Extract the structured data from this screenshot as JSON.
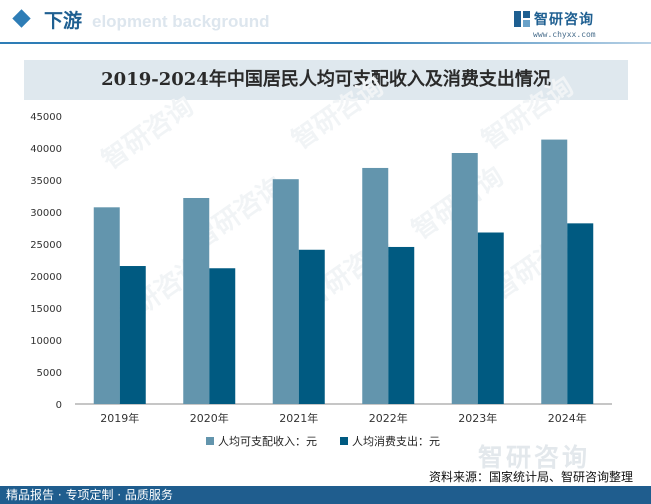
{
  "header": {
    "section_title": "下游",
    "watermark_text": "elopment background",
    "brand_name": "智研咨询",
    "brand_url": "www.chyxx.com"
  },
  "footer": {
    "services": "精品报告 · 专项定制 · 品质服务",
    "source": "资料来源：国家统计局、智研咨询整理",
    "watermark": "智研咨询"
  },
  "colors": {
    "income": "#6395ad",
    "consumption": "#005a81",
    "accent": "#2e7db6"
  },
  "chart_data": {
    "type": "bar",
    "title": "2019-2024年中国居民人均可支配收入及消费支出情况",
    "categories": [
      "2019年",
      "2020年",
      "2021年",
      "2022年",
      "2023年",
      "2024年"
    ],
    "series": [
      {
        "name": "人均可支配收入：元",
        "values": [
          30733,
          32189,
          35128,
          36883,
          39218,
          41314
        ]
      },
      {
        "name": "人均消费支出：元",
        "values": [
          21559,
          21210,
          24100,
          24538,
          26796,
          28227
        ]
      }
    ],
    "y_ticks": [
      0,
      5000,
      10000,
      15000,
      20000,
      25000,
      30000,
      35000,
      40000,
      45000
    ],
    "ylim": [
      0,
      45000
    ],
    "legend_position": "bottom-center"
  }
}
